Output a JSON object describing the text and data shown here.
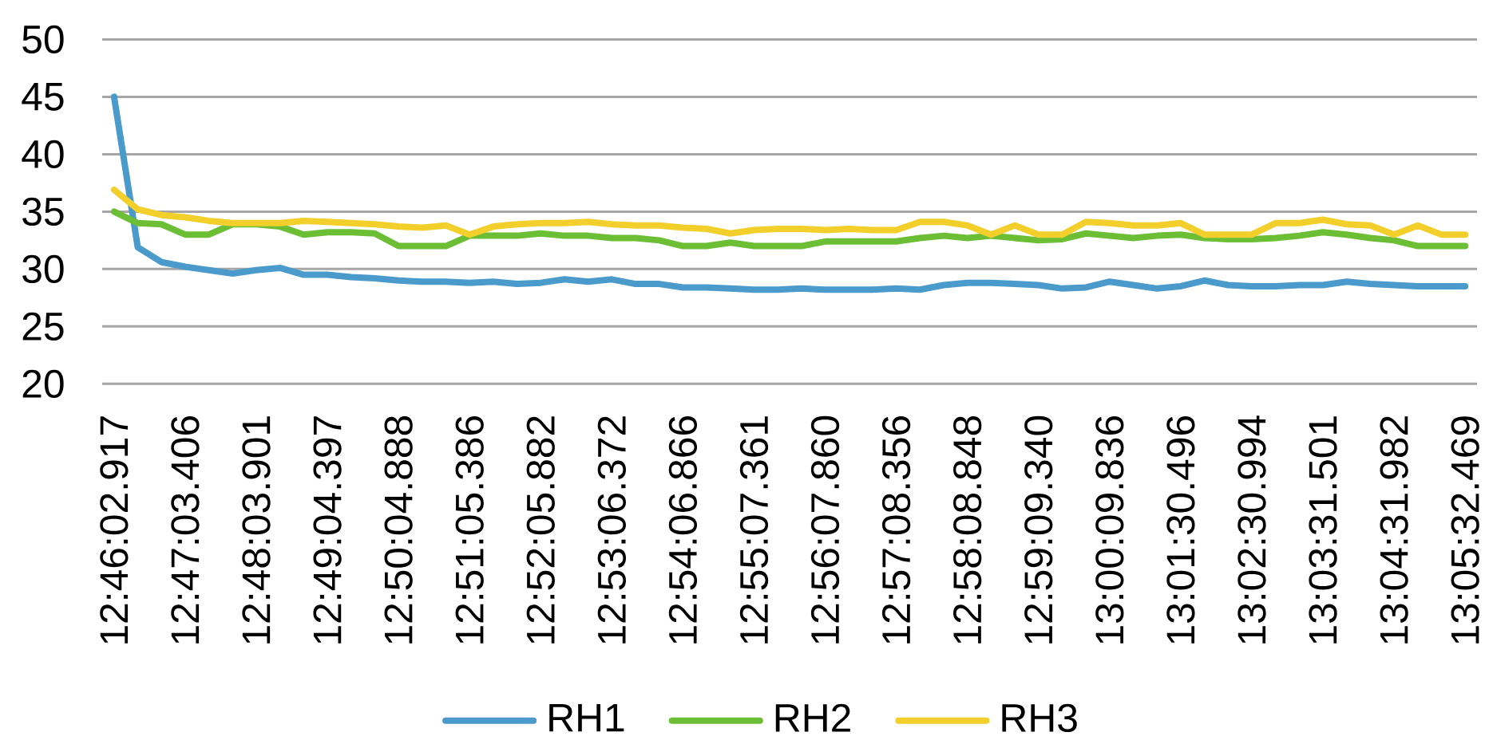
{
  "chart_data": {
    "type": "line",
    "categories": [
      "12:46:02.917",
      null,
      null,
      "12:47:03.406",
      null,
      null,
      "12:48:03.901",
      null,
      null,
      "12:49:04.397",
      null,
      null,
      "12:50:04.888",
      null,
      null,
      "12:51:05.386",
      null,
      null,
      "12:52:05.882",
      null,
      null,
      "12:53:06.372",
      null,
      null,
      "12:54:06.866",
      null,
      null,
      "12:55:07.361",
      null,
      null,
      "12:56:07.860",
      null,
      null,
      "12:57:08.356",
      null,
      null,
      "12:58:08.848",
      null,
      null,
      "12:59:09.340",
      null,
      null,
      "13:00:09.836",
      null,
      null,
      "13:01:30.496",
      null,
      null,
      "13:02:30.994",
      null,
      null,
      "13:03:31.501",
      null,
      null,
      "13:04:31.982",
      null,
      null,
      "13:05:32.469"
    ],
    "series": [
      {
        "name": "RH1",
        "color": "#4a9bcb",
        "values": [
          45,
          31.9,
          30.6,
          30.2,
          29.9,
          29.6,
          29.9,
          30.1,
          29.5,
          29.5,
          29.3,
          29.2,
          29.0,
          28.9,
          28.9,
          28.8,
          28.9,
          28.7,
          28.8,
          29.1,
          28.9,
          29.1,
          28.7,
          28.7,
          28.4,
          28.4,
          28.3,
          28.2,
          28.2,
          28.3,
          28.2,
          28.2,
          28.2,
          28.3,
          28.2,
          28.6,
          28.8,
          28.8,
          28.7,
          28.6,
          28.3,
          28.4,
          28.9,
          28.6,
          28.3,
          28.5,
          29.0,
          28.6,
          28.5,
          28.5,
          28.6,
          28.6,
          28.9,
          28.7,
          28.6,
          28.5,
          28.5,
          28.5
        ]
      },
      {
        "name": "RH2",
        "color": "#6cbf35",
        "values": [
          35.0,
          34.0,
          33.9,
          33.0,
          33.0,
          33.9,
          33.9,
          33.7,
          33.0,
          33.2,
          33.2,
          33.1,
          32.0,
          32.0,
          32.0,
          32.9,
          32.9,
          32.9,
          33.1,
          32.9,
          32.9,
          32.7,
          32.7,
          32.5,
          32.0,
          32.0,
          32.3,
          32.0,
          32.0,
          32.0,
          32.4,
          32.4,
          32.4,
          32.4,
          32.7,
          32.9,
          32.7,
          32.9,
          32.7,
          32.5,
          32.6,
          33.1,
          32.9,
          32.7,
          32.9,
          33.0,
          32.7,
          32.6,
          32.6,
          32.7,
          32.9,
          33.2,
          33.0,
          32.7,
          32.5,
          32.0,
          32.0,
          32.0
        ]
      },
      {
        "name": "RH3",
        "color": "#f3cf2c",
        "values": [
          36.9,
          35.2,
          34.7,
          34.5,
          34.2,
          34.0,
          34.0,
          34.0,
          34.2,
          34.1,
          34.0,
          33.9,
          33.7,
          33.6,
          33.8,
          33.0,
          33.7,
          33.9,
          34.0,
          34.0,
          34.1,
          33.9,
          33.8,
          33.8,
          33.6,
          33.5,
          33.1,
          33.4,
          33.5,
          33.5,
          33.4,
          33.5,
          33.4,
          33.4,
          34.1,
          34.1,
          33.8,
          33.0,
          33.8,
          33.0,
          33.0,
          34.1,
          34.0,
          33.8,
          33.8,
          34.0,
          33.0,
          33.0,
          33.0,
          34.0,
          34.0,
          34.3,
          33.9,
          33.8,
          33.0,
          33.8,
          33.0,
          33.0
        ]
      }
    ],
    "ylim": [
      20,
      50
    ],
    "yticks": [
      20,
      25,
      30,
      35,
      40,
      45,
      50
    ],
    "grid": "y",
    "legend": "bottom"
  }
}
